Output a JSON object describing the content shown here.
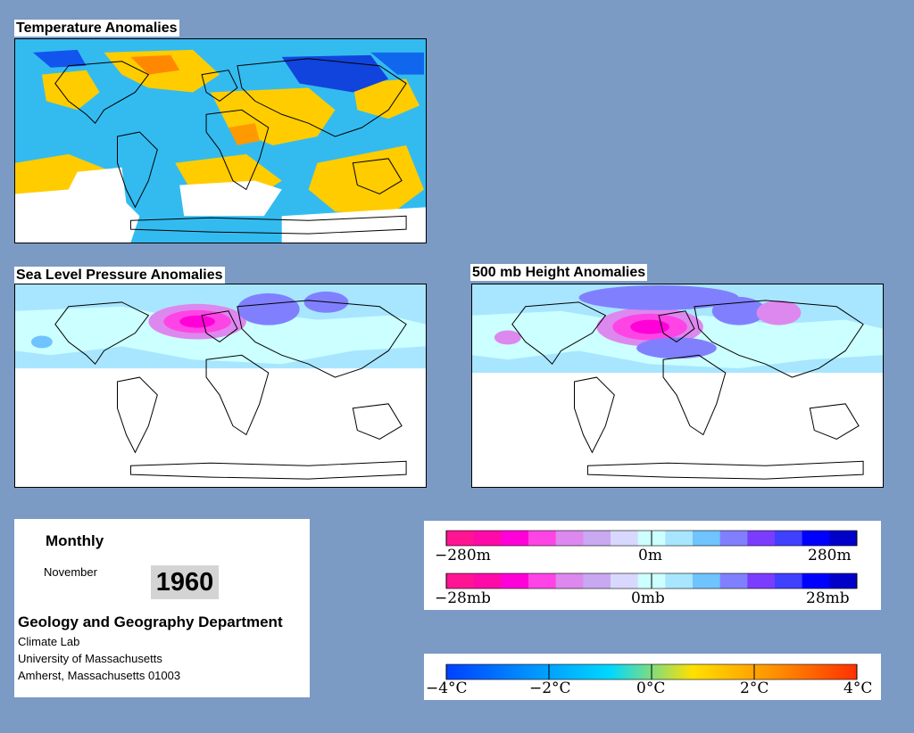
{
  "panels": {
    "temperature": {
      "title": "Temperature Anomalies"
    },
    "slp": {
      "title": "Sea Level Pressure Anomalies"
    },
    "height": {
      "title": "500 mb Height Anomalies"
    }
  },
  "info": {
    "frequency": "Monthly",
    "month": "November",
    "year": "1960",
    "department": "Geology and Geography Department",
    "lab": "Climate Lab",
    "university": "University of Massachusetts",
    "address": "Amherst, Massachusetts 01003"
  },
  "legends": {
    "height": {
      "labels": [
        "−280m",
        "0m",
        "280m"
      ],
      "colors": [
        "#ff1493",
        "#ff0aa8",
        "#ff00d9",
        "#ff44e6",
        "#dd88ee",
        "#c8a8f0",
        "#d8d8ff",
        "#ccffff",
        "#a8e6ff",
        "#6fc3ff",
        "#8080ff",
        "#7a3cff",
        "#4040ff",
        "#0000ff",
        "#0000c8"
      ]
    },
    "pressure": {
      "labels": [
        "−28mb",
        "0mb",
        "28mb"
      ],
      "colors": [
        "#ff1493",
        "#ff0aa8",
        "#ff00d9",
        "#ff44e6",
        "#dd88ee",
        "#c8a8f0",
        "#d8d8ff",
        "#ccffff",
        "#a8e6ff",
        "#6fc3ff",
        "#8080ff",
        "#7a3cff",
        "#4040ff",
        "#0000ff",
        "#0000c8"
      ]
    },
    "temperature": {
      "labels": [
        "−4°C",
        "−2°C",
        "0°C",
        "2°C",
        "4°C"
      ],
      "colors": [
        "#0040ff",
        "#0090ff",
        "#00d8ff",
        "#ffe000",
        "#ff9000",
        "#ff3000"
      ]
    }
  },
  "colors": {
    "background": "#7b9ac4",
    "cold": "#00aaff",
    "warm": "#ffcc00",
    "high": "#ff00cc",
    "low": "#3333cc"
  }
}
